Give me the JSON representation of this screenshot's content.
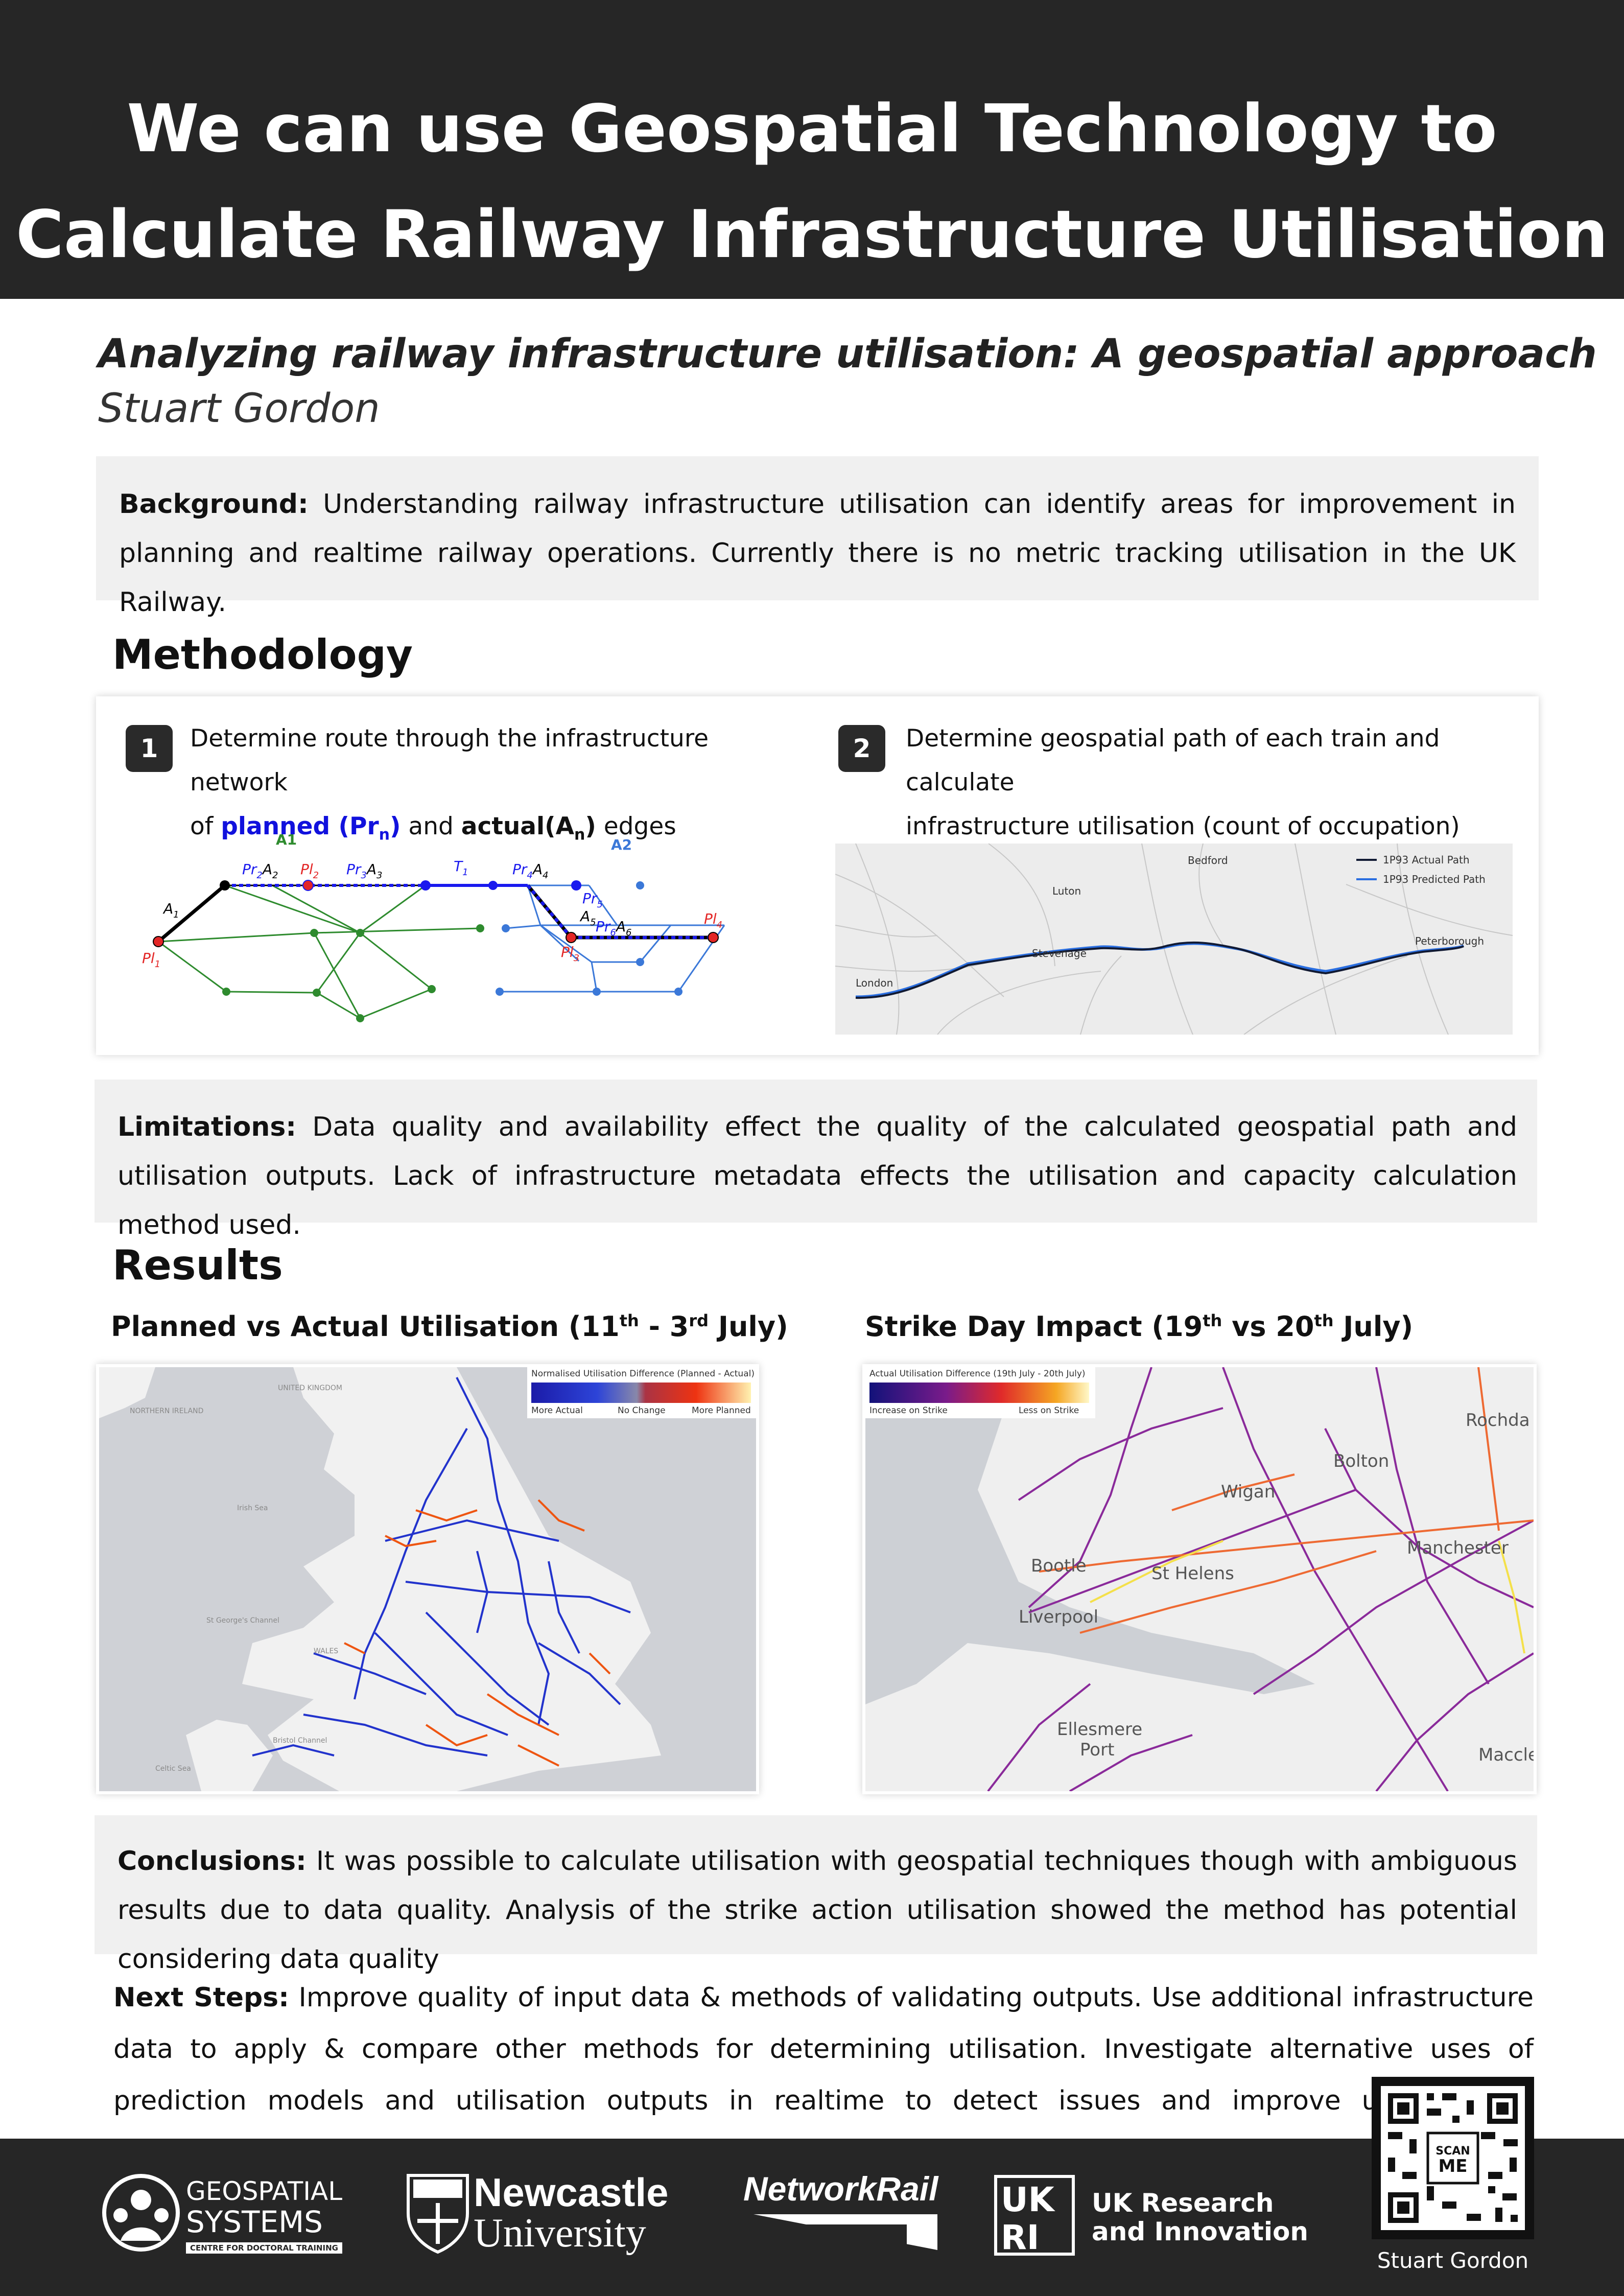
{
  "header": {
    "title_line1": "We can use Geospatial Technology to",
    "title_line2": "Calculate Railway Infrastructure Utilisation"
  },
  "subtitle": "Analyzing railway infrastructure utilisation: A geospatial approach",
  "author": "Stuart Gordon",
  "background": {
    "label": "Background:",
    "text": " Understanding railway infrastructure utilisation can identify areas for improvement in planning and realtime railway operations. Currently there is no metric tracking utilisation in the UK Railway."
  },
  "methodology": {
    "heading": "Methodology",
    "step1": {
      "number": "1",
      "line1": "Determine route through the infrastructure network",
      "of": "of ",
      "planned": "planned (Pr",
      "planned_sub": "n",
      "planned_close": ")",
      "and": " and ",
      "actual": "actual(A",
      "actual_sub": "n",
      "actual_close": ")",
      "edges": " edges"
    },
    "step2": {
      "number": "2",
      "line1": "Determine geospatial path of each train and calculate",
      "line2": "infrastructure utilisation (count of occupation)"
    },
    "graph_labels": {
      "a1": "A1",
      "a2": "A2",
      "A1": "A",
      "A1s": "1",
      "Pl1": "Pl",
      "Pl1s": "1",
      "Pr2A2": "Pr",
      "Pr2A2s": "2",
      "A2l": "A",
      "A2ls": "2",
      "Pl2": "Pl",
      "Pl2s": "2",
      "Pr3": "Pr",
      "Pr3s": "3",
      "A3": "A",
      "A3s": "3",
      "T1": "T",
      "T1s": "1",
      "Pr4": "Pr",
      "Pr4s": "4",
      "A4": "A",
      "A4s": "4",
      "Pr5": "Pr",
      "Pr5s": "5",
      "A5": "A",
      "A5s": "5",
      "Pr6": "Pr",
      "Pr6s": "6",
      "A6": "A",
      "A6s": "6",
      "Pl3": "Pl",
      "Pl3s": "3",
      "Pl4": "Pl",
      "Pl4s": "4"
    },
    "map": {
      "places": [
        "Bedford",
        "Luton",
        "Stevenage",
        "London",
        "Peterborough"
      ],
      "legend_actual": "1P93 Actual Path",
      "legend_predicted": "1P93 Predicted Path"
    }
  },
  "limitations": {
    "label": "Limitations:",
    "text": " Data quality and availability effect the quality of the calculated geospatial path and utilisation outputs. Lack of infrastructure metadata effects the utilisation and capacity calculation method used."
  },
  "results": {
    "heading": "Results",
    "left_title_a": "Planned vs Actual Utilisation (11",
    "left_title_sup1": "th",
    "left_title_b": " - 3",
    "left_title_sup2": "rd",
    "left_title_c": " July)",
    "right_title_a": "Strike Day Impact (19",
    "right_title_sup1": "th",
    "right_title_b": " vs 20",
    "right_title_sup2": "th",
    "right_title_c": " July)",
    "left_legend": {
      "title": "Normalised Utilisation Difference (Planned - Actual)",
      "left": "More Actual",
      "mid": "No Change",
      "right": "More Planned"
    },
    "left_map_places": [
      "UNITED KINGDOM",
      "NORTHERN IRELAND",
      "Irish Sea",
      "St George's Channel",
      "WALES",
      "Bristol Channel",
      "Celtic Sea"
    ],
    "right_legend": {
      "title": "Actual Utilisation Difference (19th July - 20th July)",
      "left": "Increase on Strike",
      "right": "Less on Strike"
    },
    "right_map_places": [
      "Rochda",
      "Bolton",
      "Wigan",
      "Manchester",
      "Bootle",
      "St Helens",
      "Liverpool",
      "Ellesmere",
      "Port",
      "Maccle"
    ]
  },
  "conclusions": {
    "label": "Conclusions:",
    "text": " It was possible to calculate utilisation with geospatial techniques though with ambiguous results due to data quality. Analysis of the strike action utilisation showed the method has potential considering data quality"
  },
  "next_steps": {
    "label": "Next Steps:",
    "text": " Improve quality of input data & methods of validating outputs. Use additional infrastructure data to apply & compare other methods for determining utilisation. Investigate alternative uses of prediction models and utilisation outputs in realtime to detect issues and improve utilisation & performance"
  },
  "footer": {
    "geo_line1": "GEOSPATIAL",
    "geo_line2": "SYSTEMS",
    "geo_line3": "CENTRE FOR DOCTORAL TRAINING",
    "ncl_line1": "Newcastle",
    "ncl_line2": "University",
    "network_rail": "NetworkRail",
    "ukri_line1": "UK Research",
    "ukri_line2": "and Innovation",
    "qr_scan": "SCAN",
    "qr_me": "ME",
    "qr_caption": "Stuart Gordon"
  }
}
